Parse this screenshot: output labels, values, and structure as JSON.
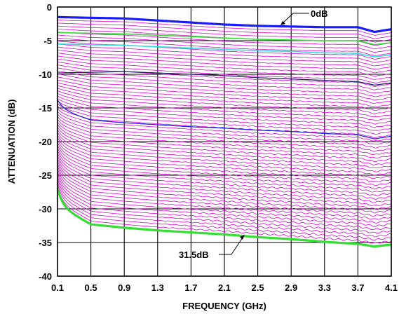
{
  "chart_data": {
    "type": "line",
    "title": "",
    "xlabel": "FREQUENCY (GHz)",
    "ylabel": "ATTENUATION (dB)",
    "xlim": [
      0.1,
      4.1
    ],
    "ylim": [
      -40,
      0
    ],
    "x_ticks": [
      "0.1",
      "0.5",
      "0.9",
      "1.3",
      "1.7",
      "2.1",
      "2.5",
      "2.9",
      "3.3",
      "3.7",
      "4.1"
    ],
    "y_ticks": [
      "0",
      "-5",
      "-10",
      "-15",
      "-20",
      "-25",
      "-30",
      "-35",
      "-40"
    ],
    "grid": true,
    "legend": "none",
    "state_count": 64,
    "step_db": 0.5,
    "colors": {
      "default_trace": "#e000d8",
      "reference_0db": "#1a1aff",
      "highlight_green": "#33dd33",
      "highlight_cyan": "#33dddd",
      "highlight_navy": "#222266",
      "highlight_blue": "#2222ee"
    },
    "series": [
      {
        "name": "0dB",
        "x": [
          0.1,
          0.5,
          0.9,
          1.3,
          1.7,
          2.1,
          2.5,
          2.9,
          3.3,
          3.7,
          3.9,
          4.1
        ],
        "values": [
          -1.5,
          -1.6,
          -1.7,
          -2.0,
          -2.3,
          -2.6,
          -2.8,
          -2.9,
          -3.0,
          -3.0,
          -3.7,
          -3.3
        ]
      },
      {
        "x": [
          0.1,
          0.5,
          0.9,
          1.3,
          1.7,
          2.1,
          2.5,
          2.9,
          3.3,
          3.7,
          3.9,
          4.1
        ],
        "values": [
          -3.8,
          -3.9,
          -4.0,
          -4.2,
          -4.4,
          -4.6,
          -4.8,
          -4.9,
          -5.0,
          -5.0,
          -5.6,
          -5.3
        ]
      },
      {
        "x": [
          0.1,
          0.5,
          0.9,
          1.3,
          1.7,
          2.1,
          2.5,
          2.9,
          3.3,
          3.7,
          3.9,
          4.1
        ],
        "values": [
          -5.5,
          -5.6,
          -5.7,
          -5.9,
          -6.1,
          -6.3,
          -6.5,
          -6.6,
          -6.8,
          -6.9,
          -7.4,
          -7.1
        ]
      },
      {
        "x": [
          0.1,
          0.5,
          0.9,
          1.3,
          1.7,
          2.1,
          2.5,
          2.9,
          3.3,
          3.7,
          3.9,
          4.1
        ],
        "values": [
          -9.8,
          -9.7,
          -9.6,
          -9.8,
          -10.0,
          -10.2,
          -10.5,
          -10.7,
          -10.9,
          -11.1,
          -11.6,
          -11.3
        ]
      },
      {
        "x": [
          0.1,
          0.5,
          0.9,
          1.3,
          1.7,
          2.1,
          2.5,
          2.9,
          3.3,
          3.7,
          3.9,
          4.1
        ],
        "values": [
          -15.2,
          -16.8,
          -17.2,
          -17.5,
          -17.8,
          -18.0,
          -18.3,
          -18.5,
          -18.8,
          -19.0,
          -19.6,
          -19.2
        ]
      },
      {
        "name": "31.5dB",
        "x": [
          0.1,
          0.5,
          0.9,
          1.3,
          1.7,
          2.1,
          2.5,
          2.9,
          3.3,
          3.7,
          3.9,
          4.1
        ],
        "values": [
          -29.5,
          -32.3,
          -32.8,
          -33.2,
          -33.5,
          -33.8,
          -34.2,
          -34.5,
          -34.9,
          -35.2,
          -35.6,
          -35.3
        ]
      }
    ],
    "annotations": [
      {
        "text": "0dB",
        "x": 3.1,
        "y": -2.9
      },
      {
        "text": "31.5dB",
        "x": 2.35,
        "y": -34.0
      }
    ]
  }
}
